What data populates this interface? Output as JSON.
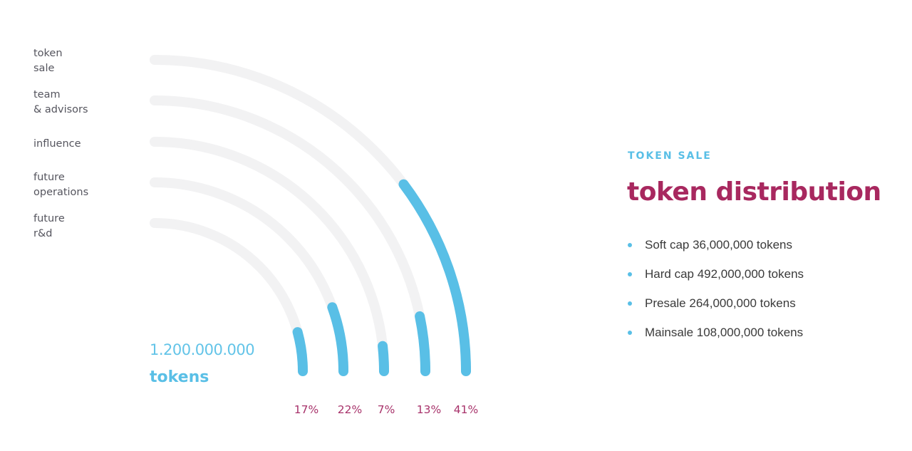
{
  "chart_data": {
    "type": "radial-bar",
    "categories": [
      "token\nsale",
      "team\n& advisors",
      "influence",
      "future\noperations",
      "future\nr&d"
    ],
    "values": [
      41,
      13,
      7,
      22,
      17
    ],
    "value_labels": [
      "41%",
      "13%",
      "7%",
      "22%",
      "17%"
    ],
    "max": 100,
    "total": {
      "value": "1.200.000.000",
      "unit": "tokens"
    }
  },
  "info": {
    "eyebrow": "TOKEN SALE",
    "heading": "token distribution",
    "facts": [
      "Soft cap 36,000,000 tokens",
      "Hard cap 492,000,000 tokens",
      "Presale 264,000,000 tokens",
      "Mainsale 108,000,000 tokens"
    ]
  },
  "colors": {
    "track": "#f2f2f3",
    "bar": "#59bfe6",
    "percent": "#a8336b",
    "heading": "#a8285f",
    "accent": "#59bfe6"
  }
}
